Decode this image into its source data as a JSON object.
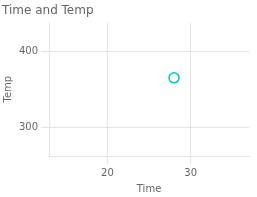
{
  "chart_data": {
    "type": "scatter",
    "title": "Time and Temp",
    "xlabel": "Time",
    "ylabel": "Temp",
    "x": [
      28
    ],
    "values": [
      365
    ],
    "color": "#00c8c8",
    "marker": "circle",
    "xlim": [
      13,
      37
    ],
    "ylim": [
      262,
      438
    ],
    "xticks": [
      20,
      30
    ],
    "yticks": [
      300,
      400
    ],
    "grid": true
  }
}
